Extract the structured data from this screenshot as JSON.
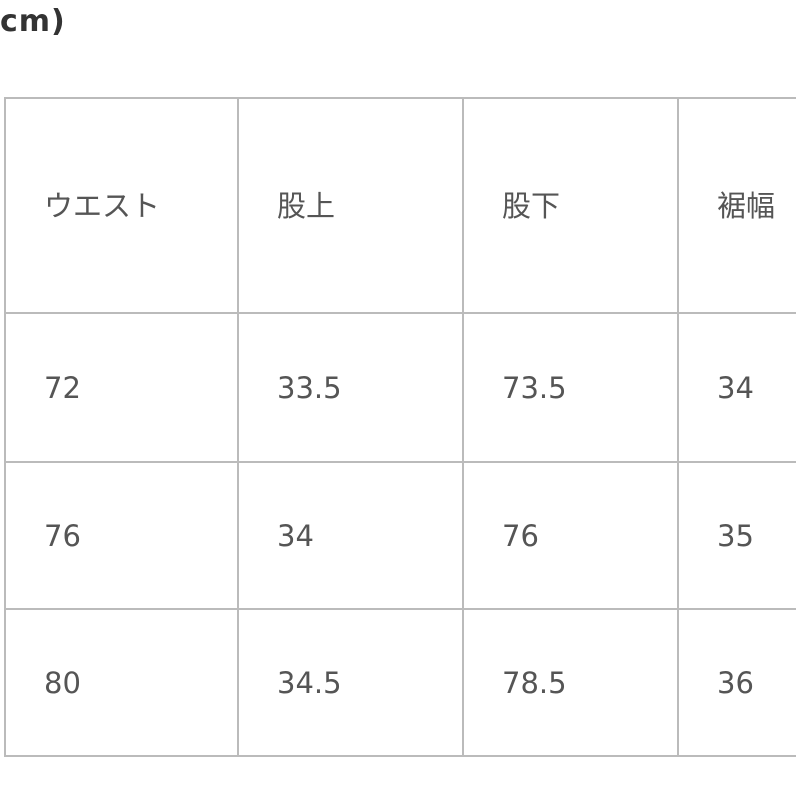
{
  "unit_label": "cm)",
  "table": {
    "headers": [
      "ウエスト",
      "股上",
      "股下",
      "裾幅"
    ],
    "rows": [
      [
        "72",
        "33.5",
        "73.5",
        "34"
      ],
      [
        "76",
        "34",
        "76",
        "35"
      ],
      [
        "80",
        "34.5",
        "78.5",
        "36"
      ]
    ]
  }
}
